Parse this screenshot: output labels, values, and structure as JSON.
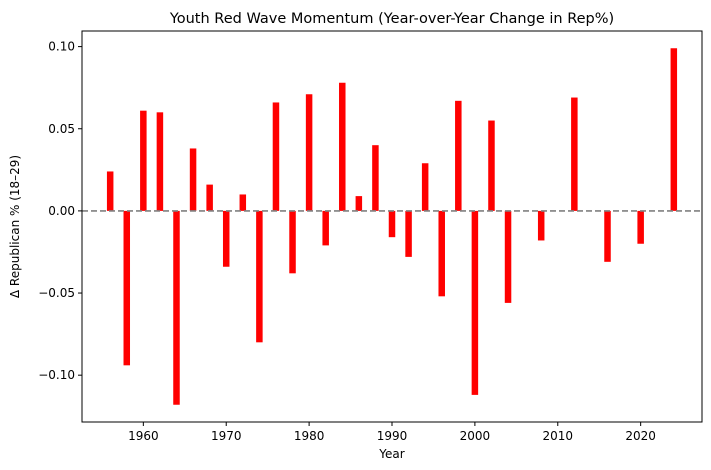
{
  "chart_data": {
    "type": "bar",
    "title": "Youth Red Wave Momentum (Year-over-Year Change in Rep%)",
    "xlabel": "Year",
    "ylabel": "Δ Republican % (18–29)",
    "x": [
      1956,
      1958,
      1960,
      1962,
      1964,
      1966,
      1968,
      1970,
      1972,
      1974,
      1976,
      1978,
      1980,
      1982,
      1984,
      1986,
      1988,
      1990,
      1992,
      1994,
      1996,
      1998,
      2000,
      2002,
      2004,
      2008,
      2012,
      2016,
      2020,
      2024
    ],
    "values": [
      0.024,
      -0.094,
      0.061,
      0.06,
      -0.118,
      0.038,
      0.016,
      -0.034,
      0.01,
      -0.08,
      0.066,
      -0.038,
      0.071,
      -0.021,
      0.078,
      0.009,
      0.04,
      -0.016,
      -0.028,
      0.029,
      -0.052,
      0.067,
      -0.112,
      0.055,
      -0.056,
      -0.018,
      0.069,
      -0.031,
      -0.02,
      0.099
    ],
    "xlim": [
      1952.6,
      2027.4
    ],
    "ylim": [
      -0.1285,
      0.1095
    ],
    "xticks": [
      1960,
      1970,
      1980,
      1990,
      2000,
      2010,
      2020
    ],
    "yticks": [
      0.1,
      0.05,
      0.0,
      -0.05,
      -0.1
    ],
    "ytick_labels": [
      "0.10",
      "0.05",
      "0.00",
      "−0.05",
      "−0.10"
    ],
    "reference_line": {
      "y": 0,
      "style": "dashed",
      "color": "#808080"
    },
    "bar_color": "#ff0000",
    "grid": false,
    "legend": false
  }
}
